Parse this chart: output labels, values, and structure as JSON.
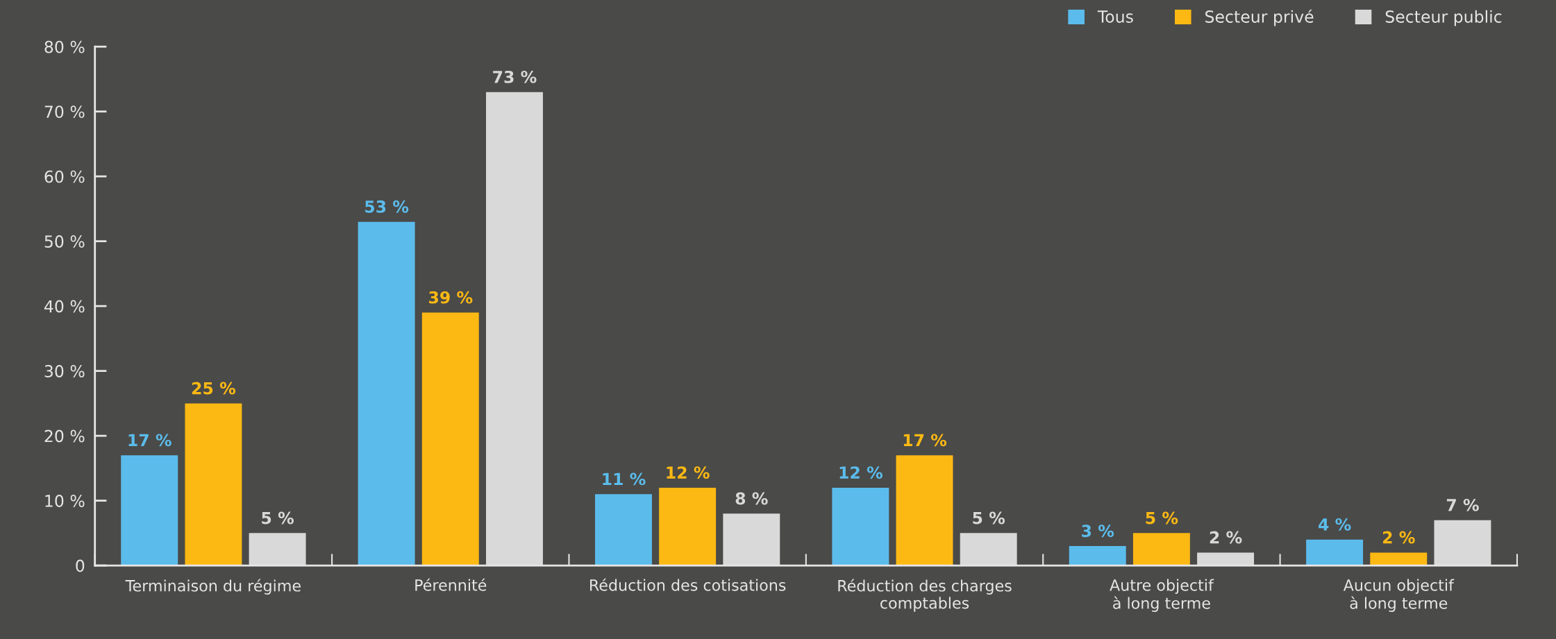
{
  "chart_data": {
    "type": "bar",
    "categories": [
      "Terminaison du régime",
      "Pérennité",
      "Réduction des cotisations",
      "Réduction des charges\ncomptables",
      "Autre objectif\nà long terme",
      "Aucun objectif\nà long terme"
    ],
    "series": [
      {
        "name": "Tous",
        "color": "#5bbcec",
        "values": [
          17,
          53,
          11,
          12,
          3,
          4
        ],
        "value_labels": [
          "17 %",
          "53 %",
          "11 %",
          "12 %",
          "3 %",
          "4 %"
        ]
      },
      {
        "name": "Secteur privé",
        "color": "#fdb913",
        "values": [
          25,
          39,
          12,
          17,
          5,
          2
        ],
        "value_labels": [
          "25 %",
          "39 %",
          "12 %",
          "17 %",
          "5 %",
          "2 %"
        ]
      },
      {
        "name": "Secteur public",
        "color": "#d9d9d9",
        "values": [
          5,
          73,
          8,
          5,
          2,
          7
        ],
        "value_labels": [
          "5 %",
          "73 %",
          "8 %",
          "5 %",
          "2 %",
          "7 %"
        ]
      }
    ],
    "ylim": [
      0,
      80
    ],
    "yticks": [
      {
        "value": 0,
        "label": "0"
      },
      {
        "value": 10,
        "label": "10 %"
      },
      {
        "value": 20,
        "label": "20 %"
      },
      {
        "value": 30,
        "label": "30 %"
      },
      {
        "value": 40,
        "label": "40 %"
      },
      {
        "value": 50,
        "label": "50 %"
      },
      {
        "value": 60,
        "label": "60 %"
      },
      {
        "value": 70,
        "label": "70 %"
      },
      {
        "value": 80,
        "label": "80 %"
      }
    ],
    "grid": false,
    "legend": "top right"
  }
}
